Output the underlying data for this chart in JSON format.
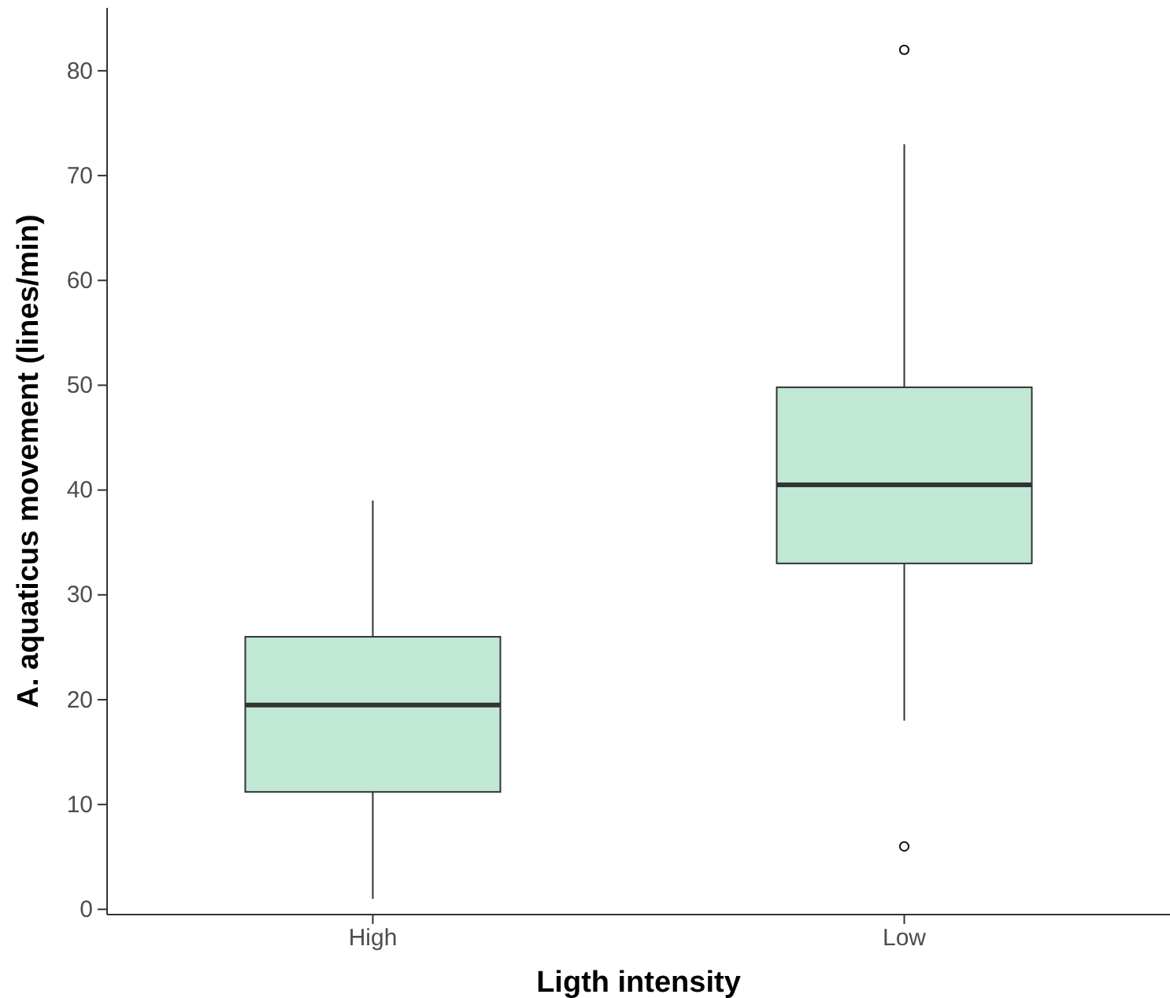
{
  "chart_data": {
    "type": "box",
    "xlabel": "Ligth intensity",
    "ylabel": "A. aquaticus movement (lines/min)",
    "categories": [
      "High",
      "Low"
    ],
    "boxes": [
      {
        "low": 1,
        "q1": 11.2,
        "median": 19.5,
        "q3": 26,
        "high": 39
      },
      {
        "low": 18,
        "q1": 33,
        "median": 40.5,
        "q3": 49.8,
        "high": 73,
        "outliers": [
          82,
          6
        ]
      }
    ],
    "color": "#c0e8d5",
    "ylim": [
      -0.5,
      86
    ],
    "yticks": [
      0,
      10,
      20,
      30,
      40,
      50,
      60,
      70,
      80
    ],
    "grid": false
  }
}
